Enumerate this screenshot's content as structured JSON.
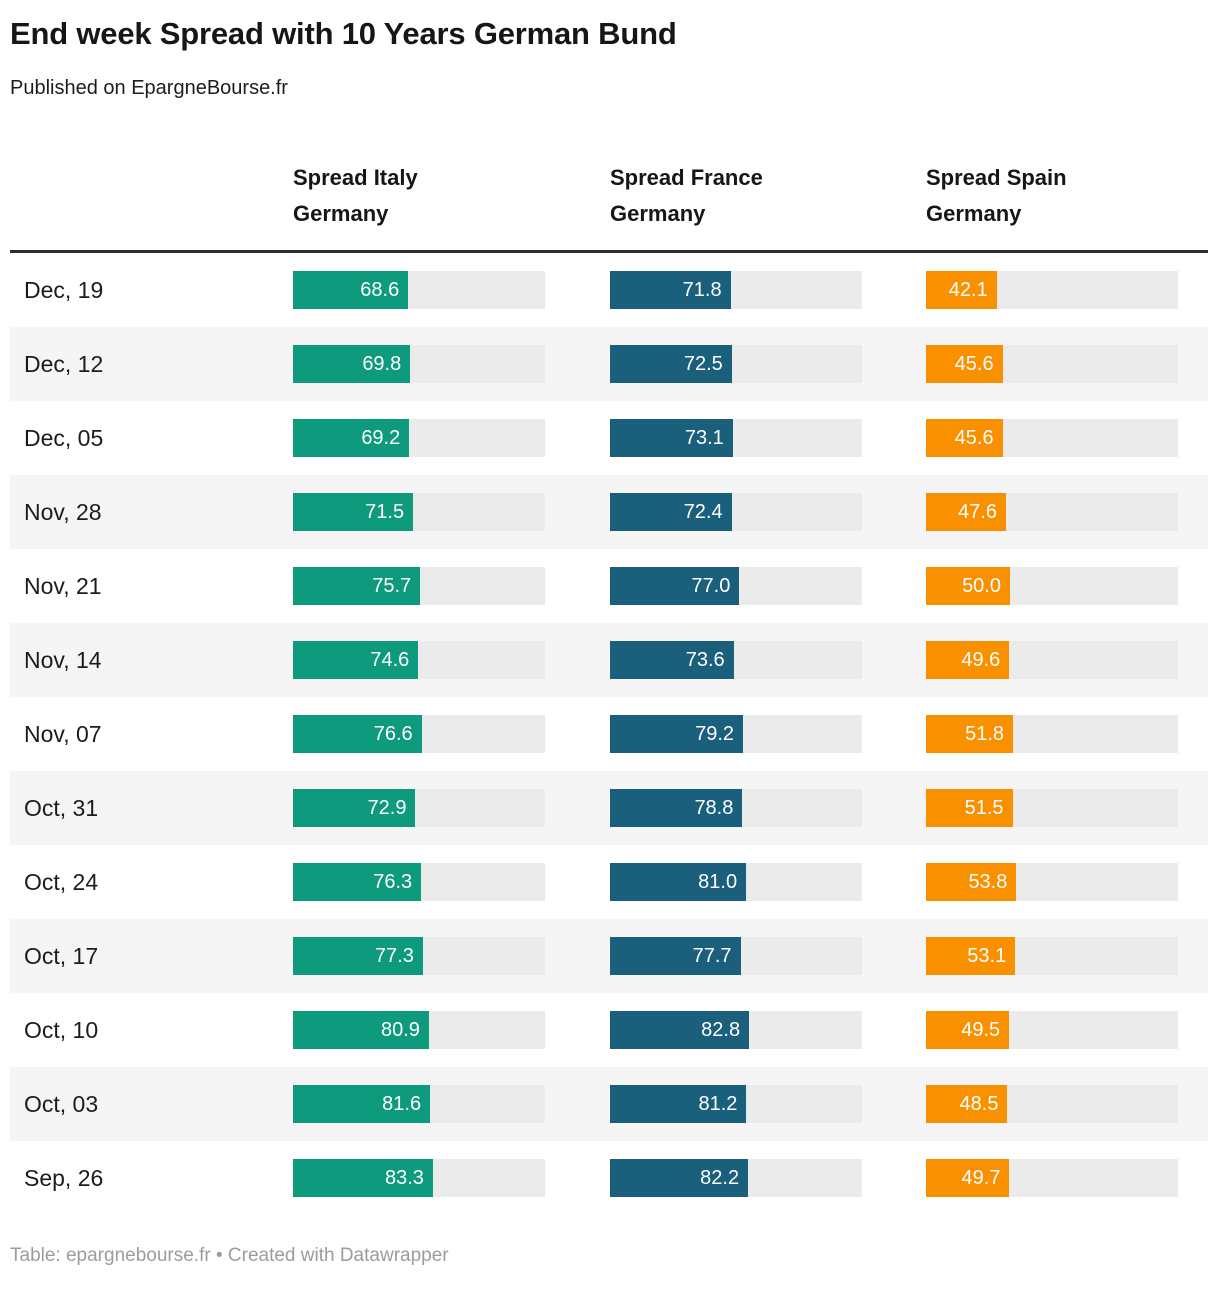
{
  "header": {
    "title": "End week Spread with 10 Years German Bund",
    "subtitle": "Published on EpargneBourse.fr"
  },
  "footer": {
    "text": "Table: epargnebourse.fr • Created with Datawrapper"
  },
  "colors": {
    "italy_bar": "#0d9a7d",
    "france_bar": "#1a5f7c",
    "spain_bar": "#f99000",
    "bar_track": "#ebebeb",
    "row_stripe": "#f5f5f5",
    "header_rule": "#2e2e2e"
  },
  "chart_data": {
    "type": "table",
    "subtype": "bar-table",
    "title": "End week Spread with 10 Years German Bund",
    "subtitle": "Published on EpargneBourse.fr",
    "categories": [
      "Dec, 19",
      "Dec, 12",
      "Dec, 05",
      "Nov, 28",
      "Nov, 21",
      "Nov, 14",
      "Nov, 07",
      "Oct, 31",
      "Oct, 24",
      "Oct, 17",
      "Oct, 10",
      "Oct, 03",
      "Sep, 26"
    ],
    "series": [
      {
        "name": "Spread Italy Germany",
        "color": "#0d9a7d",
        "values": [
          68.6,
          69.8,
          69.2,
          71.5,
          75.7,
          74.6,
          76.6,
          72.9,
          76.3,
          77.3,
          80.9,
          81.6,
          83.3
        ]
      },
      {
        "name": "Spread France Germany",
        "color": "#1a5f7c",
        "values": [
          71.8,
          72.5,
          73.1,
          72.4,
          77.0,
          73.6,
          79.2,
          78.8,
          81.0,
          77.7,
          82.8,
          81.2,
          82.2
        ]
      },
      {
        "name": "Spread Spain Germany",
        "color": "#f99000",
        "values": [
          42.1,
          45.6,
          45.6,
          47.6,
          50.0,
          49.6,
          51.8,
          51.5,
          53.8,
          53.1,
          49.5,
          48.5,
          49.7
        ]
      }
    ],
    "value_format": "one-decimal",
    "bar_scale": [
      0,
      150
    ],
    "grid": false,
    "legend_position": "none",
    "footer": "Table: epargnebourse.fr • Created with Datawrapper"
  }
}
